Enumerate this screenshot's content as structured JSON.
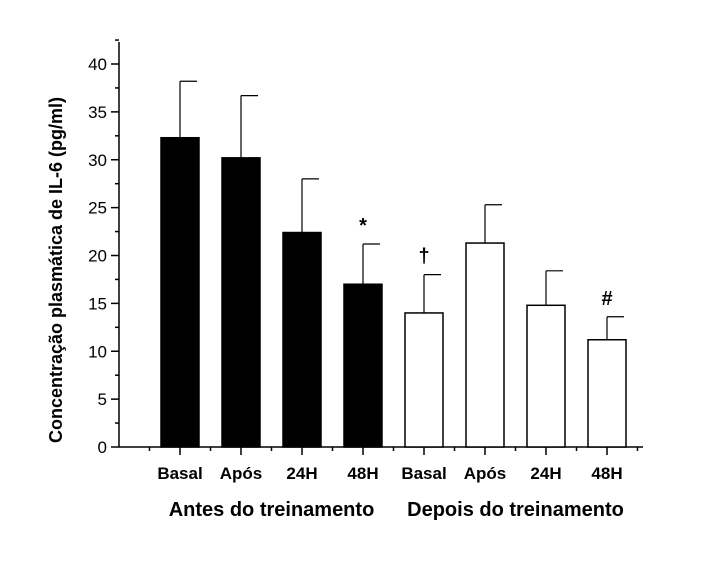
{
  "chart_data": {
    "type": "bar",
    "ylabel": "Concentração plasmática de IL-6 (pg/ml)",
    "ylim": [
      0,
      40
    ],
    "yticks": [
      0,
      5,
      10,
      15,
      20,
      25,
      30,
      35,
      40
    ],
    "categories": [
      "Basal",
      "Após",
      "24H",
      "48H",
      "Basal",
      "Após",
      "24H",
      "48H"
    ],
    "values": [
      32.3,
      30.2,
      22.4,
      17.0,
      14.0,
      21.3,
      14.8,
      11.2
    ],
    "error": [
      5.9,
      6.5,
      5.6,
      4.2,
      4.0,
      4.0,
      3.6,
      2.4
    ],
    "fills": [
      "#000000",
      "#000000",
      "#000000",
      "#000000",
      "#ffffff",
      "#ffffff",
      "#ffffff",
      "#ffffff"
    ],
    "annotations": [
      "",
      "",
      "",
      "*",
      "†",
      "",
      "",
      "#"
    ],
    "groups": [
      {
        "label": "Antes do treinamento",
        "start": 0,
        "end": 3
      },
      {
        "label": "Depois do treinamento",
        "start": 4,
        "end": 7
      }
    ],
    "grid": false,
    "legend": "none"
  }
}
